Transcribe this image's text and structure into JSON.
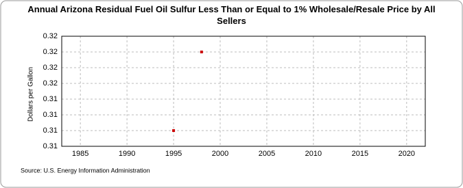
{
  "chart_data": {
    "type": "scatter",
    "title": "Annual Arizona Residual Fuel Oil Sulfur Less Than or Equal to 1% Wholesale/Resale Price by All Sellers",
    "y_label": "Dollars per Gallon",
    "source": "Source: U.S. Energy Information Administration",
    "series": [
      {
        "name": "Arizona",
        "color": "#cc0000",
        "x": [
          1995,
          1998
        ],
        "values": [
          0.3075,
          0.32
        ]
      }
    ],
    "xlim": [
      1983,
      2022
    ],
    "xticks": [
      1985,
      1990,
      1995,
      2000,
      2005,
      2010,
      2015,
      2020
    ],
    "ylim": [
      0.305,
      0.3225
    ],
    "yticks": [
      {
        "value": 0.305,
        "label": "0.31"
      },
      {
        "value": 0.3075,
        "label": "0.31"
      },
      {
        "value": 0.31,
        "label": "0.31"
      },
      {
        "value": 0.3125,
        "label": "0.31"
      },
      {
        "value": 0.315,
        "label": "0.32"
      },
      {
        "value": 0.3175,
        "label": "0.32"
      },
      {
        "value": 0.32,
        "label": "0.32"
      },
      {
        "value": 0.3225,
        "label": "0.32"
      }
    ],
    "grid": true
  }
}
